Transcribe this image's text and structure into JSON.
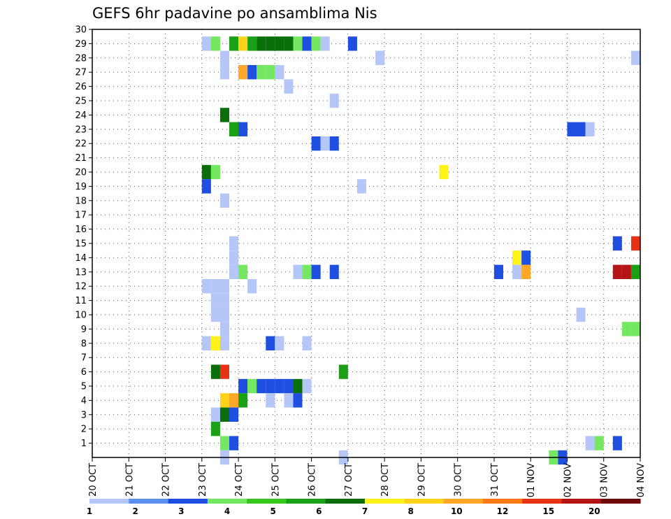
{
  "chart_data": {
    "type": "heatmap",
    "title": "GEFS 6hr padavine po ansamblima Nis",
    "xlabel": "",
    "ylabel": "",
    "x_tick_labels": [
      "20 OCT",
      "21 OCT",
      "22 OCT",
      "23 OCT",
      "24 OCT",
      "25 OCT",
      "26 OCT",
      "27 OCT",
      "28 OCT",
      "29 OCT",
      "30 OCT",
      "31 OCT",
      "01 NOV",
      "02 NOV",
      "03 NOV",
      "04 NOV"
    ],
    "x_range_days": [
      0,
      15
    ],
    "y_tick_labels": [
      "1",
      "2",
      "3",
      "4",
      "5",
      "6",
      "7",
      "8",
      "9",
      "10",
      "11",
      "12",
      "13",
      "14",
      "15",
      "16",
      "17",
      "18",
      "19",
      "20",
      "21",
      "22",
      "23",
      "24",
      "25",
      "26",
      "27",
      "28",
      "29",
      "30"
    ],
    "y_range": [
      0,
      30
    ],
    "grid": true,
    "legend_position": "bottom",
    "levels": [
      "1",
      "2",
      "3",
      "4",
      "5",
      "6",
      "7",
      "8",
      "10",
      "12",
      "15",
      "20"
    ],
    "colors": [
      "#b4c7f8",
      "#5a8ff0",
      "#1e4fe0",
      "#74e860",
      "#36c81a",
      "#1aa015",
      "#0a6e0a",
      "#fff21a",
      "#ffd21a",
      "#ffa828",
      "#ff7a14",
      "#e83214",
      "#b41414",
      "#6e0a0a"
    ],
    "cells": [
      {
        "x": 3.125,
        "y": 29,
        "v": 1
      },
      {
        "x": 3.375,
        "y": 29,
        "v": 3
      },
      {
        "x": 3.875,
        "y": 29,
        "v": 5
      },
      {
        "x": 4.125,
        "y": 29,
        "v": 8
      },
      {
        "x": 4.375,
        "y": 29,
        "v": 5
      },
      {
        "x": 4.625,
        "y": 29,
        "v": 6
      },
      {
        "x": 4.875,
        "y": 29,
        "v": 6
      },
      {
        "x": 5.125,
        "y": 29,
        "v": 6
      },
      {
        "x": 5.375,
        "y": 29,
        "v": 6
      },
      {
        "x": 5.625,
        "y": 29,
        "v": 3
      },
      {
        "x": 5.875,
        "y": 29,
        "v": 2
      },
      {
        "x": 6.125,
        "y": 29,
        "v": 3
      },
      {
        "x": 6.375,
        "y": 29,
        "v": 1
      },
      {
        "x": 7.125,
        "y": 29,
        "v": 2
      },
      {
        "x": 3.625,
        "y": 28,
        "v": 1
      },
      {
        "x": 7.875,
        "y": 28,
        "v": 1
      },
      {
        "x": 14.875,
        "y": 28,
        "v": 1
      },
      {
        "x": 3.625,
        "y": 27,
        "v": 1
      },
      {
        "x": 4.125,
        "y": 27,
        "v": 10
      },
      {
        "x": 4.375,
        "y": 27,
        "v": 2
      },
      {
        "x": 4.625,
        "y": 27,
        "v": 3
      },
      {
        "x": 4.875,
        "y": 27,
        "v": 3
      },
      {
        "x": 5.125,
        "y": 27,
        "v": 1
      },
      {
        "x": 5.375,
        "y": 26,
        "v": 1
      },
      {
        "x": 6.625,
        "y": 25,
        "v": 1
      },
      {
        "x": 3.625,
        "y": 24,
        "v": 6
      },
      {
        "x": 3.875,
        "y": 23,
        "v": 5
      },
      {
        "x": 4.125,
        "y": 23,
        "v": 2
      },
      {
        "x": 13.125,
        "y": 23,
        "v": 2
      },
      {
        "x": 13.375,
        "y": 23,
        "v": 2
      },
      {
        "x": 13.625,
        "y": 23,
        "v": 1
      },
      {
        "x": 6.125,
        "y": 22,
        "v": 2
      },
      {
        "x": 6.375,
        "y": 22,
        "v": 1
      },
      {
        "x": 6.625,
        "y": 22,
        "v": 2
      },
      {
        "x": 3.125,
        "y": 20,
        "v": 6
      },
      {
        "x": 3.375,
        "y": 20,
        "v": 3
      },
      {
        "x": 9.625,
        "y": 20,
        "v": 7
      },
      {
        "x": 3.125,
        "y": 19,
        "v": 2
      },
      {
        "x": 7.375,
        "y": 19,
        "v": 1
      },
      {
        "x": 3.625,
        "y": 18,
        "v": 1
      },
      {
        "x": 3.875,
        "y": 15,
        "v": 1
      },
      {
        "x": 14.375,
        "y": 15,
        "v": 2
      },
      {
        "x": 14.875,
        "y": 15,
        "v": 15
      },
      {
        "x": 3.875,
        "y": 14,
        "v": 1
      },
      {
        "x": 11.625,
        "y": 14,
        "v": 7
      },
      {
        "x": 11.875,
        "y": 14,
        "v": 2
      },
      {
        "x": 3.875,
        "y": 13,
        "v": 1
      },
      {
        "x": 4.125,
        "y": 13,
        "v": 3
      },
      {
        "x": 5.625,
        "y": 13,
        "v": 1
      },
      {
        "x": 5.875,
        "y": 13,
        "v": 3
      },
      {
        "x": 6.125,
        "y": 13,
        "v": 2
      },
      {
        "x": 6.625,
        "y": 13,
        "v": 2
      },
      {
        "x": 11.125,
        "y": 13,
        "v": 2
      },
      {
        "x": 11.625,
        "y": 13,
        "v": 1
      },
      {
        "x": 11.875,
        "y": 13,
        "v": 10
      },
      {
        "x": 14.375,
        "y": 13,
        "v": 20
      },
      {
        "x": 14.625,
        "y": 13,
        "v": 20
      },
      {
        "x": 14.875,
        "y": 13,
        "v": 5
      },
      {
        "x": 3.125,
        "y": 12,
        "v": 1
      },
      {
        "x": 3.375,
        "y": 12,
        "v": 1
      },
      {
        "x": 3.625,
        "y": 12,
        "v": 1
      },
      {
        "x": 4.375,
        "y": 12,
        "v": 1
      },
      {
        "x": 3.375,
        "y": 11,
        "v": 1
      },
      {
        "x": 3.625,
        "y": 11,
        "v": 1
      },
      {
        "x": 3.375,
        "y": 10,
        "v": 1
      },
      {
        "x": 3.625,
        "y": 10,
        "v": 1
      },
      {
        "x": 13.375,
        "y": 10,
        "v": 1
      },
      {
        "x": 3.625,
        "y": 9,
        "v": 1
      },
      {
        "x": 14.625,
        "y": 9,
        "v": 3
      },
      {
        "x": 14.875,
        "y": 9,
        "v": 3
      },
      {
        "x": 3.125,
        "y": 8,
        "v": 1
      },
      {
        "x": 3.375,
        "y": 8,
        "v": 7
      },
      {
        "x": 3.625,
        "y": 8,
        "v": 1
      },
      {
        "x": 4.875,
        "y": 8,
        "v": 2
      },
      {
        "x": 5.125,
        "y": 8,
        "v": 1
      },
      {
        "x": 5.875,
        "y": 8,
        "v": 1
      },
      {
        "x": 3.375,
        "y": 6,
        "v": 6
      },
      {
        "x": 3.625,
        "y": 6,
        "v": 15
      },
      {
        "x": 6.875,
        "y": 6,
        "v": 5
      },
      {
        "x": 4.125,
        "y": 5,
        "v": 2
      },
      {
        "x": 4.375,
        "y": 5,
        "v": 3
      },
      {
        "x": 4.625,
        "y": 5,
        "v": 2
      },
      {
        "x": 4.875,
        "y": 5,
        "v": 2
      },
      {
        "x": 5.125,
        "y": 5,
        "v": 2
      },
      {
        "x": 5.375,
        "y": 5,
        "v": 2
      },
      {
        "x": 5.625,
        "y": 5,
        "v": 6
      },
      {
        "x": 5.875,
        "y": 5,
        "v": 1
      },
      {
        "x": 3.625,
        "y": 4,
        "v": 8
      },
      {
        "x": 3.875,
        "y": 4,
        "v": 10
      },
      {
        "x": 4.125,
        "y": 4,
        "v": 5
      },
      {
        "x": 4.875,
        "y": 4,
        "v": 1
      },
      {
        "x": 5.375,
        "y": 4,
        "v": 1
      },
      {
        "x": 5.625,
        "y": 4,
        "v": 2
      },
      {
        "x": 3.375,
        "y": 3,
        "v": 1
      },
      {
        "x": 3.625,
        "y": 3,
        "v": 6
      },
      {
        "x": 3.875,
        "y": 3,
        "v": 2
      },
      {
        "x": 3.375,
        "y": 2,
        "v": 5
      },
      {
        "x": 3.625,
        "y": 1,
        "v": 3
      },
      {
        "x": 3.875,
        "y": 1,
        "v": 2
      },
      {
        "x": 13.625,
        "y": 1,
        "v": 1
      },
      {
        "x": 13.875,
        "y": 1,
        "v": 3
      },
      {
        "x": 14.375,
        "y": 1,
        "v": 2
      },
      {
        "x": 3.625,
        "y": 0,
        "v": 1
      },
      {
        "x": 6.875,
        "y": 0,
        "v": 1
      },
      {
        "x": 12.625,
        "y": 0,
        "v": 3
      },
      {
        "x": 12.875,
        "y": 0,
        "v": 2
      }
    ]
  }
}
